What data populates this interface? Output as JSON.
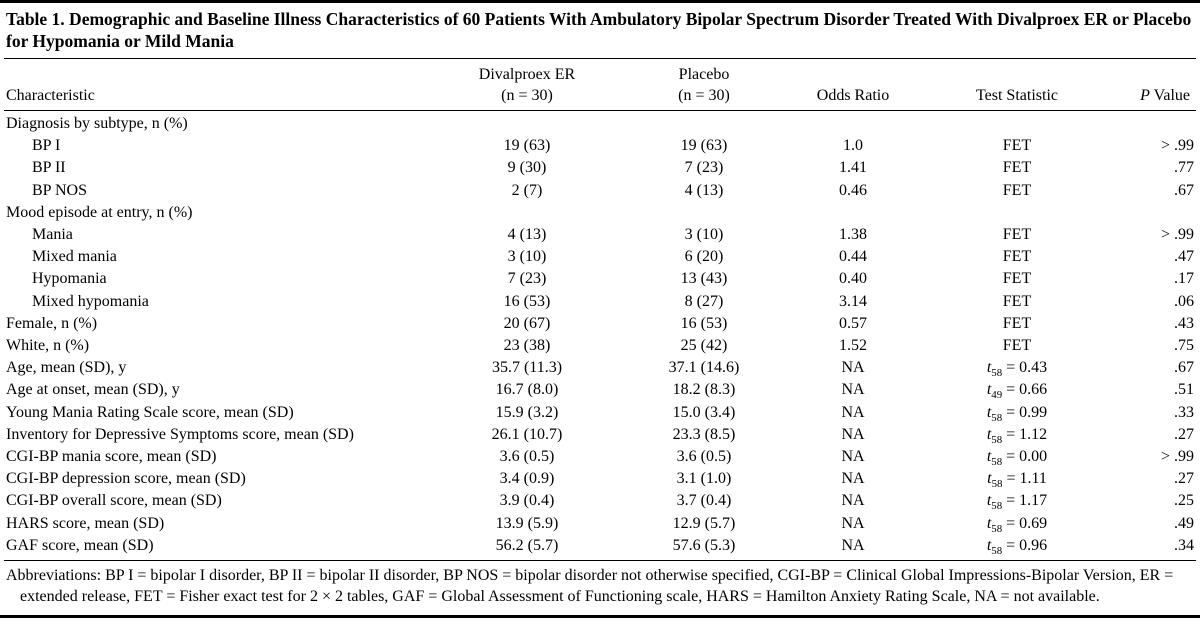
{
  "table": {
    "title": "Table 1. Demographic and Baseline Illness Characteristics of 60 Patients With Ambulatory Bipolar Spectrum Disorder Treated With Divalproex ER or Placebo for Hypomania or Mild Mania",
    "columns": {
      "characteristic": "Characteristic",
      "group1_line1": "Divalproex ER",
      "group1_line2": "(n = 30)",
      "group2_line1": "Placebo",
      "group2_line2": "(n = 30)",
      "odds_ratio": "Odds Ratio",
      "test_statistic": "Test Statistic",
      "p_italic": "P",
      "p_rest": " Value"
    },
    "rows": [
      {
        "label": "Diagnosis by subtype, n (%)",
        "indent": 0,
        "divalproex": "",
        "placebo": "",
        "odds": "",
        "test": {
          "stat": "",
          "sub": "",
          "rest": ""
        },
        "p": ""
      },
      {
        "label": "BP I",
        "indent": 1,
        "divalproex": "19 (63)",
        "placebo": "19 (63)",
        "odds": "1.0",
        "test": {
          "stat": "FET",
          "sub": "",
          "rest": ""
        },
        "p": "> .99"
      },
      {
        "label": "BP II",
        "indent": 1,
        "divalproex": "9 (30)",
        "placebo": "7 (23)",
        "odds": "1.41",
        "test": {
          "stat": "FET",
          "sub": "",
          "rest": ""
        },
        "p": ".77"
      },
      {
        "label": "BP NOS",
        "indent": 1,
        "divalproex": "2 (7)",
        "placebo": "4 (13)",
        "odds": "0.46",
        "test": {
          "stat": "FET",
          "sub": "",
          "rest": ""
        },
        "p": ".67"
      },
      {
        "label": "Mood episode at entry, n (%)",
        "indent": 0,
        "divalproex": "",
        "placebo": "",
        "odds": "",
        "test": {
          "stat": "",
          "sub": "",
          "rest": ""
        },
        "p": ""
      },
      {
        "label": "Mania",
        "indent": 1,
        "divalproex": "4 (13)",
        "placebo": "3 (10)",
        "odds": "1.38",
        "test": {
          "stat": "FET",
          "sub": "",
          "rest": ""
        },
        "p": "> .99"
      },
      {
        "label": "Mixed mania",
        "indent": 1,
        "divalproex": "3 (10)",
        "placebo": "6 (20)",
        "odds": "0.44",
        "test": {
          "stat": "FET",
          "sub": "",
          "rest": ""
        },
        "p": ".47"
      },
      {
        "label": "Hypomania",
        "indent": 1,
        "divalproex": "7 (23)",
        "placebo": "13 (43)",
        "odds": "0.40",
        "test": {
          "stat": "FET",
          "sub": "",
          "rest": ""
        },
        "p": ".17"
      },
      {
        "label": "Mixed hypomania",
        "indent": 1,
        "divalproex": "16 (53)",
        "placebo": "8 (27)",
        "odds": "3.14",
        "test": {
          "stat": "FET",
          "sub": "",
          "rest": ""
        },
        "p": ".06"
      },
      {
        "label": "Female, n (%)",
        "indent": 0,
        "divalproex": "20 (67)",
        "placebo": "16 (53)",
        "odds": "0.57",
        "test": {
          "stat": "FET",
          "sub": "",
          "rest": ""
        },
        "p": ".43"
      },
      {
        "label": "White, n (%)",
        "indent": 0,
        "divalproex": "23 (38)",
        "placebo": "25 (42)",
        "odds": "1.52",
        "test": {
          "stat": "FET",
          "sub": "",
          "rest": ""
        },
        "p": ".75"
      },
      {
        "label": "Age, mean (SD), y",
        "indent": 0,
        "divalproex": "35.7 (11.3)",
        "placebo": "37.1 (14.6)",
        "odds": "NA",
        "test": {
          "stat": "t",
          "sub": "58",
          "rest": " = 0.43"
        },
        "p": ".67"
      },
      {
        "label": "Age at onset, mean (SD), y",
        "indent": 0,
        "divalproex": "16.7 (8.0)",
        "placebo": "18.2 (8.3)",
        "odds": "NA",
        "test": {
          "stat": "t",
          "sub": "49",
          "rest": " = 0.66"
        },
        "p": ".51"
      },
      {
        "label": "Young Mania Rating Scale score, mean (SD)",
        "indent": 0,
        "divalproex": "15.9 (3.2)",
        "placebo": "15.0 (3.4)",
        "odds": "NA",
        "test": {
          "stat": "t",
          "sub": "58",
          "rest": " = 0.99"
        },
        "p": ".33"
      },
      {
        "label": "Inventory for Depressive Symptoms score, mean (SD)",
        "indent": 0,
        "divalproex": "26.1 (10.7)",
        "placebo": "23.3 (8.5)",
        "odds": "NA",
        "test": {
          "stat": "t",
          "sub": "58",
          "rest": " = 1.12"
        },
        "p": ".27"
      },
      {
        "label": "CGI-BP mania score, mean (SD)",
        "indent": 0,
        "divalproex": "3.6 (0.5)",
        "placebo": "3.6 (0.5)",
        "odds": "NA",
        "test": {
          "stat": "t",
          "sub": "58",
          "rest": " = 0.00"
        },
        "p": "> .99"
      },
      {
        "label": "CGI-BP depression score, mean (SD)",
        "indent": 0,
        "divalproex": "3.4 (0.9)",
        "placebo": "3.1 (1.0)",
        "odds": "NA",
        "test": {
          "stat": "t",
          "sub": "58",
          "rest": " = 1.11"
        },
        "p": ".27"
      },
      {
        "label": "CGI-BP overall score, mean (SD)",
        "indent": 0,
        "divalproex": "3.9 (0.4)",
        "placebo": "3.7 (0.4)",
        "odds": "NA",
        "test": {
          "stat": "t",
          "sub": "58",
          "rest": " = 1.17"
        },
        "p": ".25"
      },
      {
        "label": "HARS score, mean (SD)",
        "indent": 0,
        "divalproex": "13.9 (5.9)",
        "placebo": "12.9 (5.7)",
        "odds": "NA",
        "test": {
          "stat": "t",
          "sub": "58",
          "rest": " = 0.69"
        },
        "p": ".49"
      },
      {
        "label": "GAF score, mean (SD)",
        "indent": 0,
        "divalproex": "56.2 (5.7)",
        "placebo": "57.6 (5.3)",
        "odds": "NA",
        "test": {
          "stat": "t",
          "sub": "58",
          "rest": " = 0.96"
        },
        "p": ".34"
      }
    ],
    "footnote": "Abbreviations: BP I = bipolar I disorder, BP II = bipolar II disorder, BP NOS = bipolar disorder not otherwise specified, CGI-BP = Clinical Global Impressions-Bipolar Version, ER = extended release, FET = Fisher exact test for 2 × 2 tables, GAF = Global Assessment of Functioning scale, HARS = Hamilton Anxiety Rating Scale, NA = not available."
  }
}
